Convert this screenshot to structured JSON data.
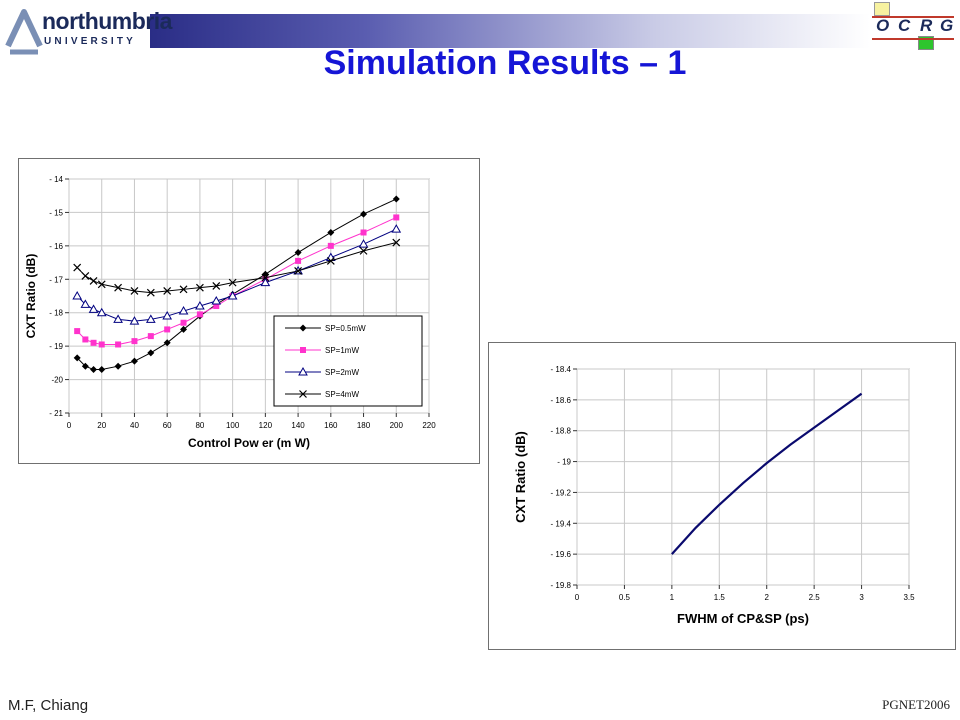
{
  "header": {
    "university_logo_text": "northumbria",
    "university_logo_sub": "UNIVERSITY",
    "group_logo_letters": [
      "O",
      "C",
      "R",
      "G"
    ]
  },
  "title": "Simulation Results – 1",
  "footer": {
    "author": "M.F, Chiang",
    "event": "PGNET2006"
  },
  "colors": {
    "title": "#1515d6",
    "header_bar_start": "#2a2d86",
    "header_bar_end": "#ffffff"
  },
  "chart_data": [
    {
      "type": "line",
      "xlabel": "Control Pow er (m W)",
      "ylabel": "CXT Ratio (dB)",
      "xlim": [
        0,
        220
      ],
      "ylim": [
        -21,
        -14
      ],
      "xticks": [
        0,
        20,
        40,
        60,
        80,
        100,
        120,
        140,
        160,
        180,
        200,
        220
      ],
      "yticks": [
        -14,
        -15,
        -16,
        -17,
        -18,
        -19,
        -20,
        -21
      ],
      "ytick_labels": [
        "- 14",
        "- 15",
        "- 16",
        "- 17",
        "- 18",
        "- 19",
        "-20",
        "- 21"
      ],
      "grid": true,
      "legend_position": "lower-right",
      "series": [
        {
          "name": "SP=0.5mW",
          "marker": "diamond",
          "color": "#000000",
          "x": [
            5,
            10,
            15,
            20,
            30,
            40,
            50,
            60,
            70,
            80,
            90,
            100,
            120,
            140,
            160,
            180,
            200
          ],
          "y": [
            -19.35,
            -19.6,
            -19.7,
            -19.7,
            -19.6,
            -19.45,
            -19.2,
            -18.9,
            -18.5,
            -18.1,
            -17.75,
            -17.45,
            -16.85,
            -16.2,
            -15.6,
            -15.05,
            -14.6
          ]
        },
        {
          "name": "SP=1mW",
          "marker": "square",
          "color": "#ff33cc",
          "x": [
            5,
            10,
            15,
            20,
            30,
            40,
            50,
            60,
            70,
            80,
            90,
            100,
            120,
            140,
            160,
            180,
            200
          ],
          "y": [
            -18.55,
            -18.8,
            -18.9,
            -18.95,
            -18.95,
            -18.85,
            -18.7,
            -18.5,
            -18.3,
            -18.05,
            -17.8,
            -17.5,
            -17.0,
            -16.45,
            -16.0,
            -15.6,
            -15.15
          ]
        },
        {
          "name": "SP=2mW",
          "marker": "triangle",
          "color": "#000080",
          "x": [
            5,
            10,
            15,
            20,
            30,
            40,
            50,
            60,
            70,
            80,
            90,
            100,
            120,
            140,
            160,
            180,
            200
          ],
          "y": [
            -17.5,
            -17.75,
            -17.9,
            -18.0,
            -18.2,
            -18.25,
            -18.2,
            -18.1,
            -17.95,
            -17.8,
            -17.65,
            -17.5,
            -17.1,
            -16.75,
            -16.35,
            -15.95,
            -15.5
          ]
        },
        {
          "name": "SP=4mW",
          "marker": "x",
          "color": "#000000",
          "x": [
            5,
            10,
            15,
            20,
            30,
            40,
            50,
            60,
            70,
            80,
            90,
            100,
            120,
            140,
            160,
            180,
            200
          ],
          "y": [
            -16.65,
            -16.9,
            -17.05,
            -17.15,
            -17.25,
            -17.35,
            -17.4,
            -17.35,
            -17.3,
            -17.25,
            -17.2,
            -17.1,
            -16.95,
            -16.75,
            -16.45,
            -16.15,
            -15.9
          ]
        }
      ]
    },
    {
      "type": "line",
      "xlabel": "FWHM of CP&SP (ps)",
      "ylabel": "CXT Ratio (dB)",
      "xlim": [
        0,
        3.5
      ],
      "ylim": [
        -19.8,
        -18.4
      ],
      "xticks": [
        0,
        0.5,
        1,
        1.5,
        2,
        2.5,
        3,
        3.5
      ],
      "xtick_labels": [
        "0",
        "0.5",
        "1",
        "1.5",
        "2",
        "2.5",
        "3",
        "3.5"
      ],
      "yticks": [
        -18.4,
        -18.6,
        -18.8,
        -19,
        -19.2,
        -19.4,
        -19.6,
        -19.8
      ],
      "ytick_labels": [
        "- 18.4",
        "- 18.6",
        "- 18.8",
        "- 19",
        "- 19.2",
        "- 19.4",
        "- 19.6",
        "- 19.8"
      ],
      "grid": true,
      "series": [
        {
          "color": "#0a0a6e",
          "x": [
            1.0,
            1.25,
            1.5,
            1.75,
            2.0,
            2.25,
            2.5,
            2.75,
            3.0
          ],
          "y": [
            -19.6,
            -19.43,
            -19.28,
            -19.14,
            -19.01,
            -18.89,
            -18.78,
            -18.67,
            -18.56
          ]
        }
      ]
    }
  ]
}
